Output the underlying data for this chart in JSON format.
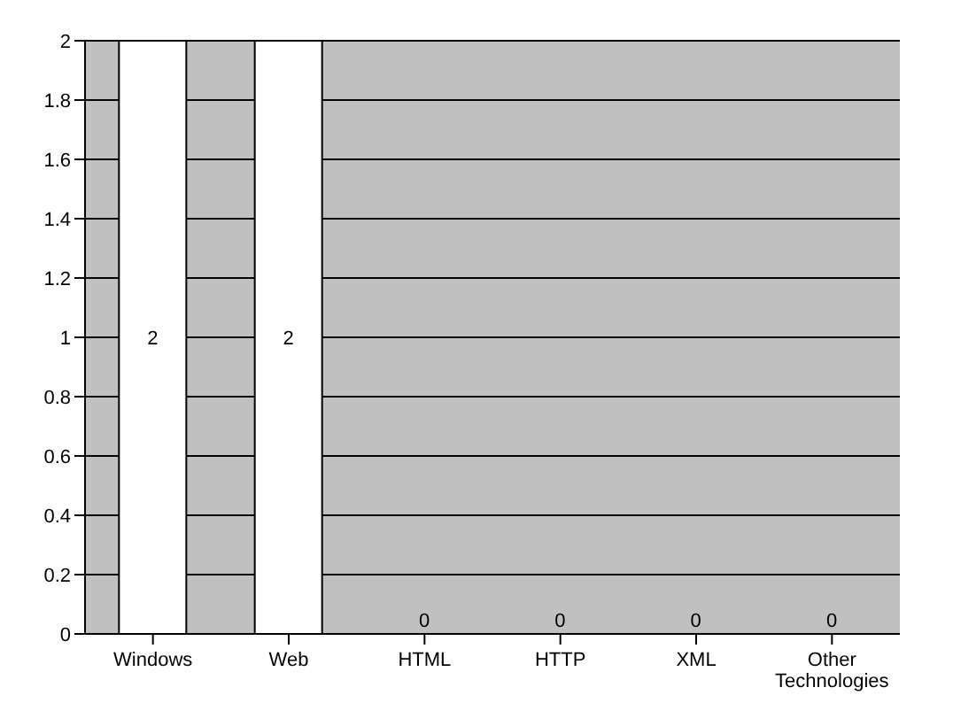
{
  "chart_data": {
    "type": "bar",
    "categories": [
      "Windows",
      "Web",
      "HTML",
      "HTTP",
      "XML",
      "Other Technologies"
    ],
    "values": [
      2,
      2,
      0,
      0,
      0,
      0
    ],
    "color": "#ffffff",
    "ylim": [
      0,
      2
    ],
    "yticks": [
      0,
      0.2,
      0.4,
      0.6,
      0.8,
      1,
      1.2,
      1.4,
      1.6,
      1.8,
      2
    ],
    "grid": "y",
    "data_labels": true
  }
}
